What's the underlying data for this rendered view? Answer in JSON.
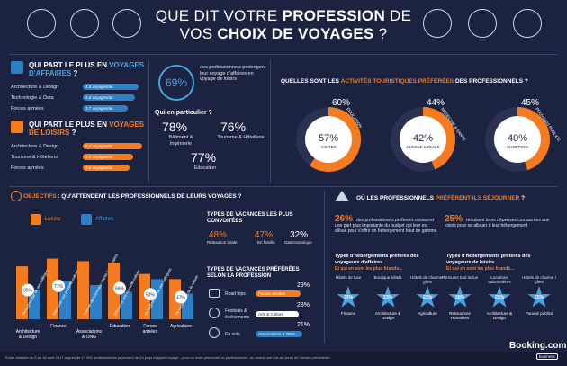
{
  "title": {
    "line1_pre": "QUE DIT VOTRE ",
    "line1_bold": "PROFESSION",
    "line1_post": " DE",
    "line2_pre": "VOS ",
    "line2_bold": "CHOIX DE VOYAGES",
    "line2_post": " ?"
  },
  "colors": {
    "background": "#1c2340",
    "blue": "#2f7fc4",
    "orange": "#f47b20",
    "white": "#ffffff"
  },
  "affaires": {
    "heading_pre": "QUI PART LE PLUS EN ",
    "heading_accent": "VOYAGES D'AFFAIRES",
    "heading_post": " ?",
    "rows": [
      {
        "label": "Architecture & Design",
        "value": "4,9 voyages/an"
      },
      {
        "label": "Technologie & Data",
        "value": "4,6 voyages/an"
      },
      {
        "label": "Forces armées",
        "value": "3,7 voyages/an"
      }
    ]
  },
  "loisirs": {
    "heading_pre": "QUI PART LE PLUS EN ",
    "heading_accent": "VOYAGES DE LOISIRS",
    "heading_post": " ?",
    "rows": [
      {
        "label": "Architecture & Design",
        "value": "5,4 voyages/an"
      },
      {
        "label": "Tourisme & Hôtellerie",
        "value": "4,0 voyages/an"
      },
      {
        "label": "Forces armées",
        "value": "3,8 voyages/an"
      }
    ]
  },
  "prolong": {
    "value": "69%",
    "text": "des professionnels prolongent leur voyage d'affaires en voyage de loisirs",
    "sub": "Qui en particulier ?",
    "items": [
      {
        "value": "78%",
        "label": "Bâtiment & Ingénierie"
      },
      {
        "value": "76%",
        "label": "Tourisme & Hôtellerie"
      },
      {
        "value": "77%",
        "label": "Éducation"
      }
    ]
  },
  "activities": {
    "heading_pre": "QUELLES SONT LES ",
    "heading_accent": "ACTIVITÉS TOURISTIQUES PRÉFÉRÉES",
    "heading_post": " DES PROFESSIONNELS ?",
    "items": [
      {
        "inner_value": "57%",
        "inner_label": "VISITES",
        "outer_value": "60%",
        "outer_label": "ÉDUCATION",
        "fraction": 0.6
      },
      {
        "inner_value": "42%",
        "inner_label": "CUISINE LOCALE",
        "outer_value": "44%",
        "outer_label": "MÉDECINE & SANTÉ",
        "fraction": 0.44
      },
      {
        "inner_value": "40%",
        "inner_label": "SHOPPING",
        "outer_value": "45%",
        "outer_label": "POUVOIRS PUBLICS",
        "fraction": 0.45
      }
    ]
  },
  "objectifs": {
    "heading_pre": "OBJECTIFS",
    "heading_post": " : QU'ATTENDENT LES PROFESSIONNELS DE LEURS VOYAGES ?",
    "legend_loisirs": "Loisirs",
    "legend_affaires": "Affaires",
    "groups": [
      {
        "category": "Architecture & Design",
        "pct": "35%",
        "loisirs": 0.62,
        "affaires": 0.35,
        "note": "Se rapprocher de ses collègues"
      },
      {
        "category": "Finance",
        "pct": "71%",
        "loisirs": 0.71,
        "affaires": 0.45,
        "note": "Découvrir une nouvelle culture"
      },
      {
        "category": "Associations & ONG",
        "pct": "",
        "loisirs": 0.68,
        "affaires": 0.4,
        "note": "Trouver de nouveaux clients / partenaires"
      },
      {
        "category": "Éducation",
        "pct": "66%",
        "loisirs": 0.66,
        "affaires": 0.32,
        "note": "Découvrir une nouvelle culture"
      },
      {
        "category": "Forces armées",
        "pct": "53%",
        "loisirs": 0.53,
        "affaires": 0.47,
        "note": "Se rapprocher de ses collègues"
      },
      {
        "category": "Agriculture",
        "pct": "47%",
        "loisirs": 0.47,
        "affaires": 0.3,
        "note": "Se rapprocher de la nature"
      }
    ]
  },
  "vacances": {
    "heading": "TYPES DE VACANCES LES PLUS CONVOITÉES",
    "items": [
      {
        "value": "48%",
        "label": "Relaxation totale"
      },
      {
        "value": "47%",
        "label": "En famille"
      },
      {
        "value": "32%",
        "label": "Gastronomique"
      }
    ],
    "heading2": "TYPES DE VACANCES PRÉFÉRÉES SELON LA PROFESSION",
    "rows": [
      {
        "label": "Road trips",
        "tag": "Forces armées",
        "value": "29%"
      },
      {
        "label": "Festivals & événements",
        "tag": "Arts & Culture",
        "value": "28%"
      },
      {
        "label": "En solo",
        "tag": "Associations & ONG",
        "value": "21%"
      }
    ]
  },
  "sejour": {
    "heading_pre": "OÙ LES PROFESSIONNELS ",
    "heading_accent": "PRÉFÈRENT-ILS SÉJOURNER",
    "heading_post": " ?",
    "stat1_value": "26%",
    "stat1_text": "des professionnels préfèrent consacrer une part plus importante du budget qui leur est alloué pour s'offrir un hébergement haut de gamme",
    "stat2_value": "25%",
    "stat2_text": "réduisent leurs dépenses consacrées aux loisirs pour se allouer à leur hébergement",
    "aff_heading": "Types d'hébergements préférés des voyageurs d'affaires",
    "aff_sub": "Et qui en sont les plus friands...",
    "lei_heading": "Types d'hébergements préférés des voyageurs de loisirs",
    "lei_sub": "Et qui en sont les plus friands...",
    "aff_items": [
      {
        "type": "Hôtels de luxe",
        "pct": "33%",
        "who": "Finance"
      },
      {
        "type": "Boutique hôtels",
        "pct": "23%",
        "who": "Architecture & Design"
      },
      {
        "type": "Hôtels de charme / gîtes",
        "pct": "22%",
        "who": "Agriculture"
      }
    ],
    "lei_items": [
      {
        "type": "Formules tout inclus",
        "pct": "28%",
        "who": "Ressources Humaines"
      },
      {
        "type": "Locations saisonnières",
        "pct": "25%",
        "who": "Architecture & Design"
      },
      {
        "type": "Hôtels de charme / gîtes",
        "pct": "25%",
        "who": "Pouvoir publics"
      }
    ]
  },
  "footer": {
    "note": "Étude réalisée du 3 au 18 août 2017 auprès de 17 000 professionnels provenant de 24 pays et ayant voyagé - pour un motif personnel ou professionnel - au moins une fois au cours de l'année précédente.",
    "brand": "Booking.com",
    "brand_sub": "business"
  }
}
